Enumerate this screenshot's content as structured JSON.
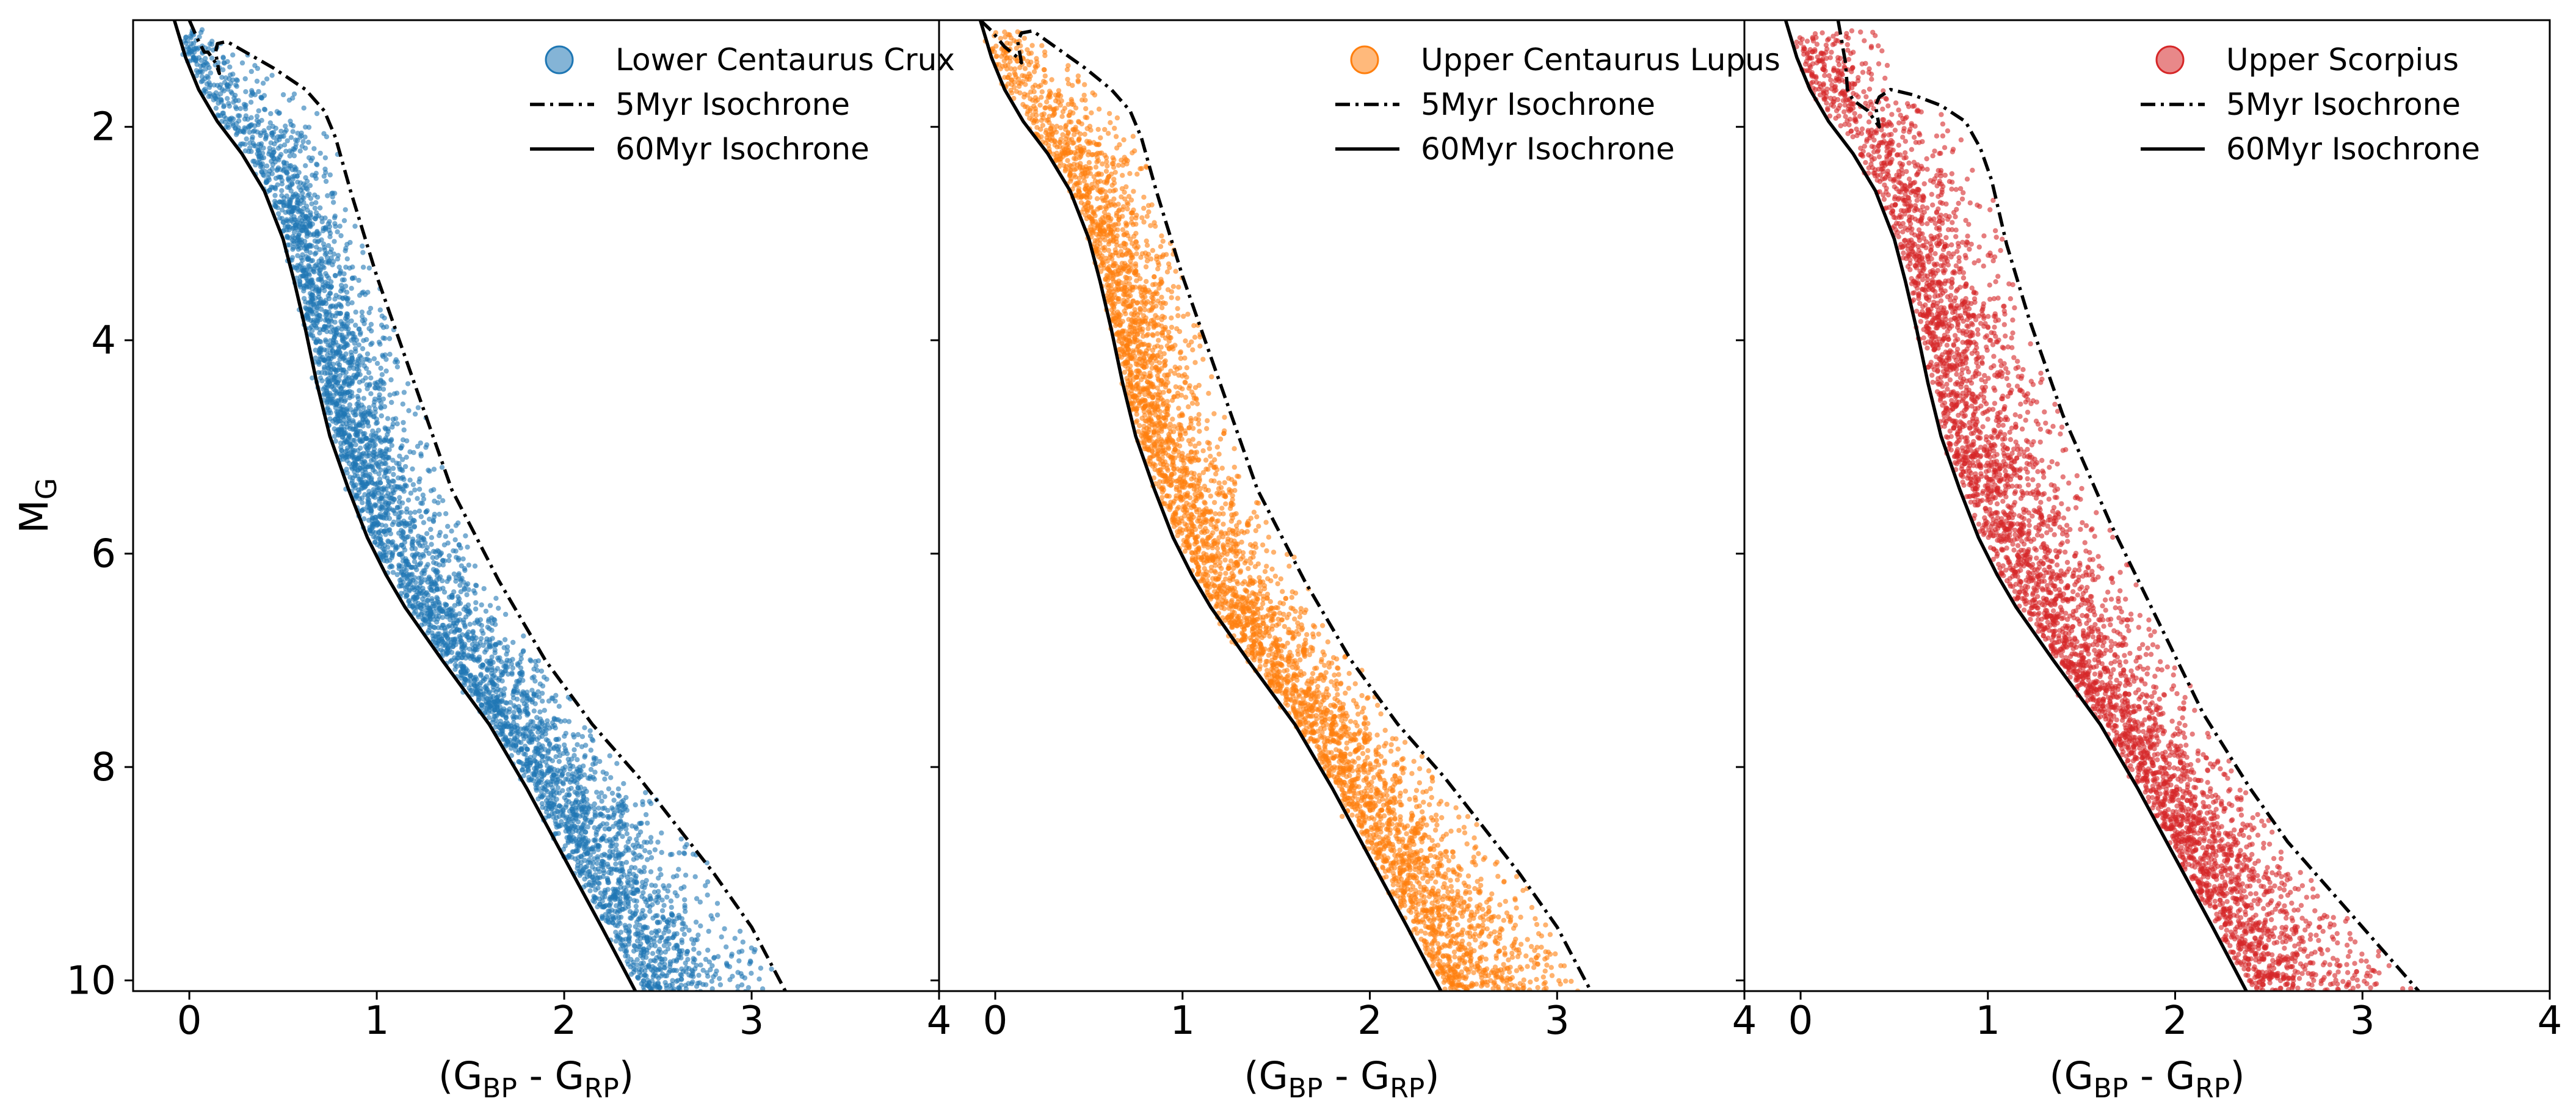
{
  "figure": {
    "y_axis_label": {
      "main": "M",
      "sub": "G"
    },
    "x_axis_label": {
      "open": "(G",
      "sub1": "BP",
      "mid": " - G",
      "sub2": "RP",
      "close": ")"
    }
  },
  "chart_data": [
    {
      "type": "scatter",
      "panel": "left",
      "xlim": [
        -0.3,
        4.0
      ],
      "ylim": [
        10.1,
        1.0
      ],
      "y_inverted": true,
      "x_ticks": [
        "0",
        "1",
        "2",
        "3",
        "4"
      ],
      "y_ticks": [
        "2",
        "4",
        "6",
        "8",
        "10"
      ],
      "show_y_tick_labels": true,
      "grid": false,
      "legend_placement": "top-right",
      "series": [
        {
          "name": "Lower Centaurus Crux",
          "kind": "points",
          "color": "#1f77b4",
          "approx_point_count": 4500,
          "distribution": "dense band between the 5Myr and 60Myr isochrones, from (0.05, 1.1) to (2.9, 10.1), densest near the 60Myr line at faint magnitudes"
        },
        {
          "name": "5Myr Isochrone",
          "kind": "line",
          "style": "dash-dot",
          "color": "#000000",
          "x": [
            0.0,
            0.05,
            0.08,
            0.1,
            0.12,
            0.14,
            0.16,
            0.14,
            0.15,
            0.2,
            0.3,
            0.45,
            0.62,
            0.72,
            0.78,
            0.86,
            1.0,
            1.2,
            1.4,
            1.65,
            1.9,
            2.15,
            2.4,
            2.6,
            2.8,
            3.0,
            3.18
          ],
          "y": [
            1.0,
            1.2,
            1.3,
            1.3,
            1.35,
            1.4,
            1.5,
            1.3,
            1.22,
            1.2,
            1.3,
            1.45,
            1.65,
            1.85,
            2.1,
            2.6,
            3.4,
            4.4,
            5.4,
            6.25,
            7.0,
            7.6,
            8.1,
            8.55,
            9.0,
            9.5,
            10.1
          ]
        },
        {
          "name": "60Myr Isochrone",
          "kind": "line",
          "style": "solid",
          "color": "#000000",
          "x": [
            -0.08,
            -0.02,
            0.05,
            0.15,
            0.28,
            0.4,
            0.5,
            0.56,
            0.62,
            0.68,
            0.75,
            0.85,
            0.95,
            1.05,
            1.15,
            1.35,
            1.6,
            1.8,
            2.0,
            2.2,
            2.38
          ],
          "y": [
            1.0,
            1.35,
            1.65,
            1.95,
            2.25,
            2.6,
            3.05,
            3.45,
            3.9,
            4.4,
            4.9,
            5.4,
            5.85,
            6.2,
            6.5,
            7.0,
            7.6,
            8.2,
            8.85,
            9.5,
            10.1
          ]
        }
      ]
    },
    {
      "type": "scatter",
      "panel": "middle",
      "xlim": [
        -0.3,
        4.0
      ],
      "ylim": [
        10.1,
        1.0
      ],
      "y_inverted": true,
      "x_ticks": [
        "0",
        "1",
        "2",
        "3",
        "4"
      ],
      "y_ticks": [
        "2",
        "4",
        "6",
        "8",
        "10"
      ],
      "show_y_tick_labels": false,
      "grid": false,
      "legend_placement": "top-right",
      "series": [
        {
          "name": "Upper Centaurus Lupus",
          "kind": "points",
          "color": "#ff7f0e",
          "approx_point_count": 4500,
          "distribution": "dense band between the 5Myr and 60Myr isochrones, from (0.05, 1.1) to (2.9, 10.1), densest near the 60Myr line at faint magnitudes"
        },
        {
          "name": "5Myr Isochrone",
          "kind": "line",
          "style": "dash-dot",
          "color": "#000000",
          "x": [
            -0.08,
            -0.02,
            0.05,
            0.12,
            0.14,
            0.12,
            0.14,
            0.2,
            0.32,
            0.48,
            0.62,
            0.72,
            0.78,
            0.86,
            1.0,
            1.2,
            1.4,
            1.65,
            1.9,
            2.15,
            2.4,
            2.6,
            2.8,
            3.0,
            3.18
          ],
          "y": [
            1.0,
            1.1,
            1.25,
            1.35,
            1.4,
            1.2,
            1.12,
            1.1,
            1.25,
            1.45,
            1.65,
            1.85,
            2.1,
            2.6,
            3.4,
            4.4,
            5.4,
            6.25,
            7.0,
            7.6,
            8.1,
            8.55,
            9.0,
            9.5,
            10.1
          ]
        },
        {
          "name": "60Myr Isochrone",
          "kind": "line",
          "style": "solid",
          "color": "#000000",
          "x": [
            -0.08,
            -0.02,
            0.05,
            0.15,
            0.28,
            0.4,
            0.5,
            0.56,
            0.62,
            0.68,
            0.75,
            0.85,
            0.95,
            1.05,
            1.15,
            1.35,
            1.6,
            1.8,
            2.0,
            2.2,
            2.38
          ],
          "y": [
            1.0,
            1.35,
            1.65,
            1.95,
            2.25,
            2.6,
            3.05,
            3.45,
            3.9,
            4.4,
            4.9,
            5.4,
            5.85,
            6.2,
            6.5,
            7.0,
            7.6,
            8.2,
            8.85,
            9.5,
            10.1
          ]
        }
      ]
    },
    {
      "type": "scatter",
      "panel": "right",
      "xlim": [
        -0.3,
        4.0
      ],
      "ylim": [
        10.1,
        1.0
      ],
      "y_inverted": true,
      "x_ticks": [
        "0",
        "1",
        "2",
        "3",
        "4"
      ],
      "y_ticks": [
        "2",
        "4",
        "6",
        "8",
        "10"
      ],
      "show_y_tick_labels": false,
      "grid": false,
      "legend_placement": "top-right",
      "series": [
        {
          "name": "Upper Scorpius",
          "kind": "points",
          "color": "#d62728",
          "approx_point_count": 4500,
          "distribution": "dense band between the 5Myr and 60Myr isochrones, from (0.0, 1.1) to (3.0, 10.1), densest near the 60Myr line at faint magnitudes"
        },
        {
          "name": "5Myr Isochrone",
          "kind": "line",
          "style": "dash-dot",
          "color": "#000000",
          "x": [
            0.2,
            0.22,
            0.24,
            0.25,
            0.28,
            0.32,
            0.36,
            0.4,
            0.42,
            0.4,
            0.42,
            0.48,
            0.6,
            0.75,
            0.88,
            0.96,
            1.02,
            1.1,
            1.22,
            1.4,
            1.65,
            1.9,
            2.15,
            2.4,
            2.6,
            2.8,
            3.0,
            3.3
          ],
          "y": [
            1.0,
            1.2,
            1.4,
            1.65,
            1.75,
            1.8,
            1.85,
            1.95,
            2.0,
            1.8,
            1.72,
            1.65,
            1.7,
            1.8,
            1.95,
            2.2,
            2.5,
            3.1,
            3.8,
            4.7,
            5.7,
            6.6,
            7.5,
            8.2,
            8.7,
            9.1,
            9.5,
            10.1
          ]
        },
        {
          "name": "60Myr Isochrone",
          "kind": "line",
          "style": "solid",
          "color": "#000000",
          "x": [
            -0.08,
            -0.02,
            0.05,
            0.15,
            0.28,
            0.4,
            0.5,
            0.56,
            0.62,
            0.68,
            0.75,
            0.85,
            0.95,
            1.05,
            1.15,
            1.35,
            1.6,
            1.8,
            2.0,
            2.2,
            2.38
          ],
          "y": [
            1.0,
            1.35,
            1.65,
            1.95,
            2.25,
            2.6,
            3.05,
            3.45,
            3.9,
            4.4,
            4.9,
            5.4,
            5.85,
            6.2,
            6.5,
            7.0,
            7.6,
            8.2,
            8.85,
            9.5,
            10.1
          ]
        }
      ]
    }
  ]
}
